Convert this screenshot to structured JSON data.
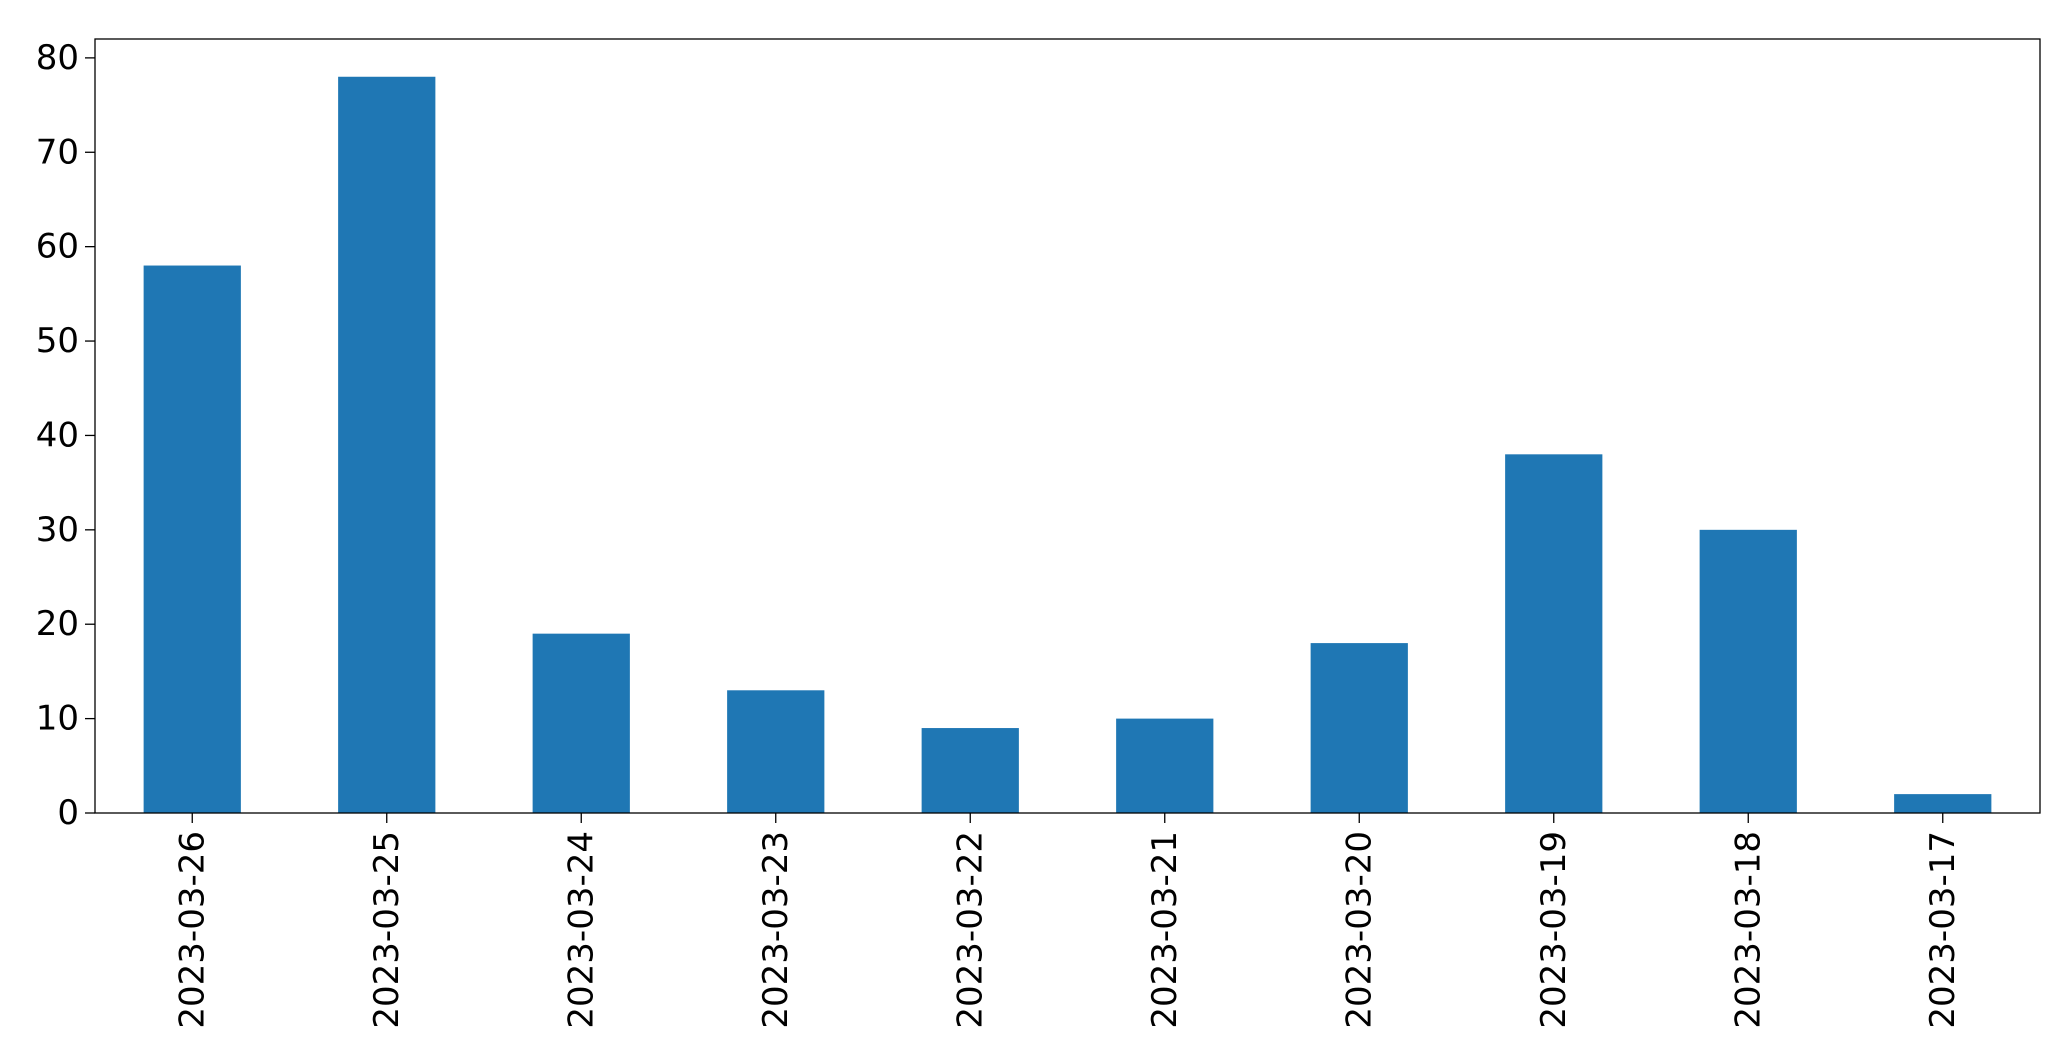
{
  "chart_data": {
    "type": "bar",
    "title": "",
    "xlabel": "",
    "ylabel": "",
    "categories": [
      "2023-03-26",
      "2023-03-25",
      "2023-03-24",
      "2023-03-23",
      "2023-03-22",
      "2023-03-21",
      "2023-03-20",
      "2023-03-19",
      "2023-03-18",
      "2023-03-17"
    ],
    "values": [
      58,
      78,
      19,
      13,
      9,
      10,
      18,
      38,
      30,
      2
    ],
    "ylim": [
      0,
      82
    ],
    "yticks": [
      0,
      10,
      20,
      30,
      40,
      50,
      60,
      70,
      80
    ],
    "grid": false,
    "legend": "none",
    "bar_color": "#1f77b4"
  }
}
